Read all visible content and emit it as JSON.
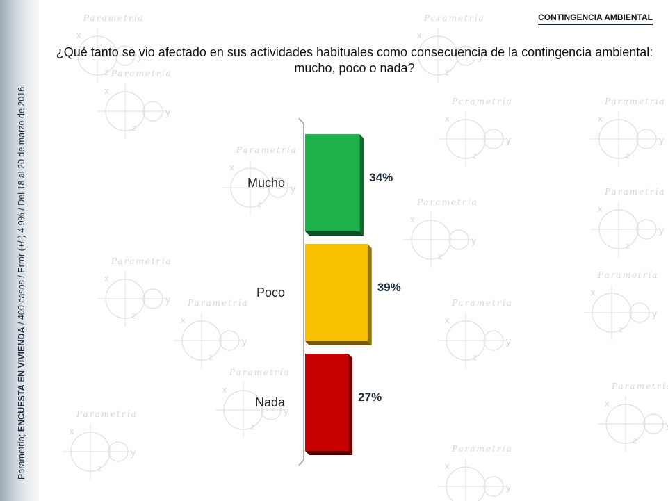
{
  "header": {
    "section_title": "CONTINGENCIA AMBIENTAL",
    "question": "¿Qué tanto se vio afectado en sus actividades habituales como consecuencia de la contingencia ambiental: mucho, poco o nada?"
  },
  "source_note": {
    "prefix": "Parametría; ",
    "bold": "ENCUESTA EN VIVIENDA",
    "suffix": " / 400 casos / Error (+/-) 4.9% / Del 18 al 20 de marzo de 2016."
  },
  "watermark": {
    "brand": "Parametría",
    "letters": [
      "x",
      "y",
      "z"
    ]
  },
  "chart_data": {
    "type": "bar",
    "orientation": "horizontal",
    "categories": [
      "Mucho",
      "Poco",
      "Nada"
    ],
    "values": [
      34,
      39,
      27
    ],
    "value_labels": [
      "34%",
      "39%",
      "27%"
    ],
    "colors": [
      "#1db04b",
      "#f7c000",
      "#c40000"
    ],
    "unit": "%",
    "xlim": [
      0,
      100
    ]
  }
}
